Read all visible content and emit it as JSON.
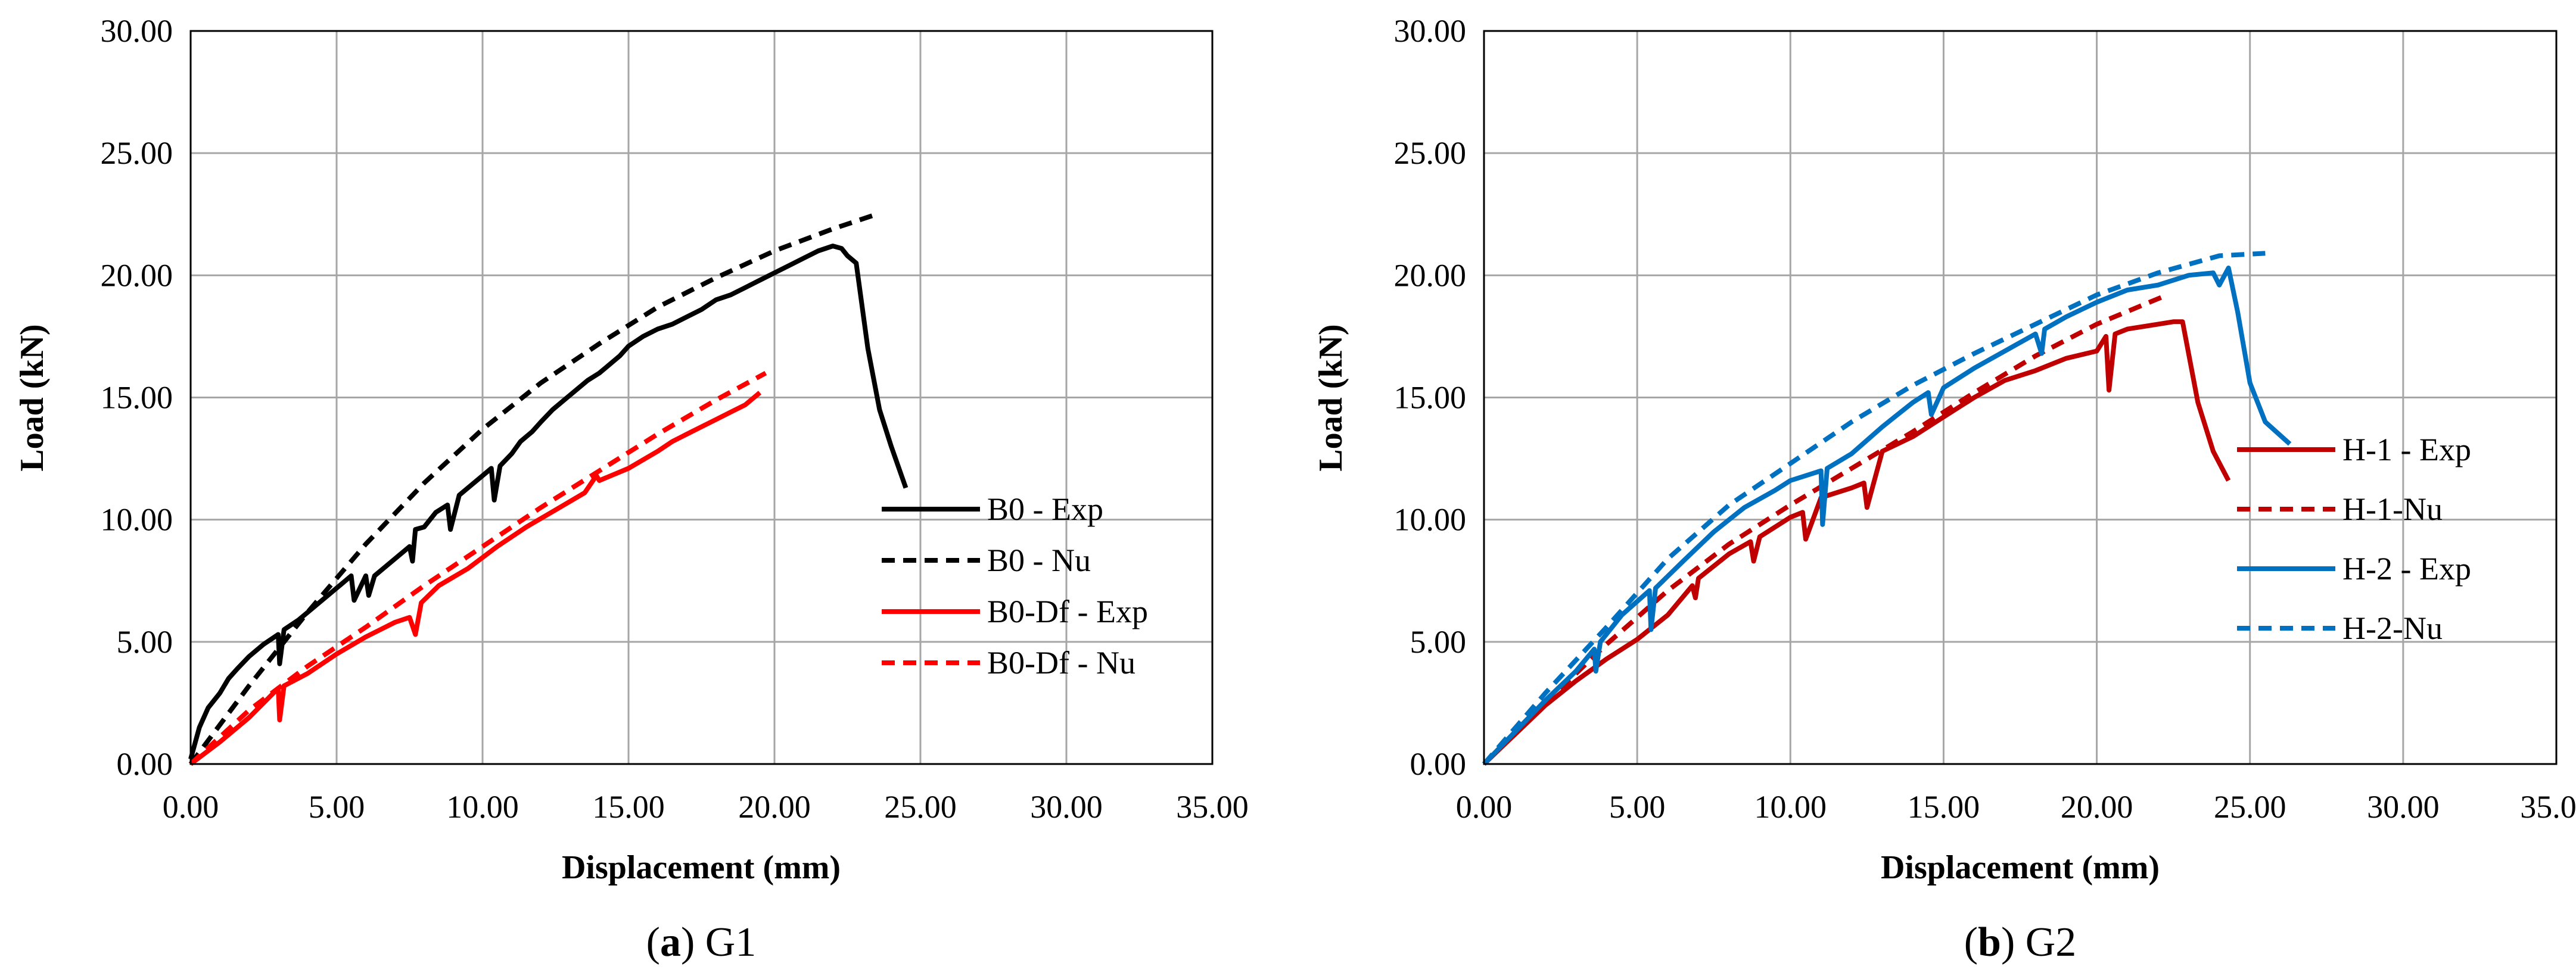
{
  "chart_data": [
    {
      "type": "line",
      "caption_letter": "a",
      "caption_text": "G1",
      "title": "",
      "xlabel": "Displacement (mm)",
      "ylabel": "Load (kN)",
      "xlim": [
        0,
        35
      ],
      "ylim": [
        0,
        30
      ],
      "xticks": [
        "0.00",
        "5.00",
        "10.00",
        "15.00",
        "20.00",
        "25.00",
        "30.00",
        "35.00"
      ],
      "yticks": [
        "0.00",
        "5.00",
        "10.00",
        "15.00",
        "20.00",
        "25.00",
        "30.00"
      ],
      "grid": true,
      "legend_position": "bottom-right",
      "series": [
        {
          "name": "B0 - Exp",
          "color": "#000000",
          "dash": "solid",
          "x": [
            0,
            0.3,
            0.6,
            1,
            1.3,
            1.6,
            2,
            2.5,
            3,
            3.05,
            3.2,
            3.7,
            4.2,
            4.7,
            5.2,
            5.5,
            5.6,
            6,
            6.1,
            6.3,
            6.6,
            7,
            7.5,
            7.6,
            7.7,
            8,
            8.4,
            8.8,
            8.9,
            9.2,
            9.6,
            10,
            10.3,
            10.4,
            10.6,
            11,
            11.3,
            11.7,
            12,
            12.4,
            12.8,
            13.2,
            13.6,
            14,
            14.3,
            14.7,
            15,
            15.5,
            16,
            16.5,
            17,
            17.5,
            18,
            18.5,
            19,
            19.5,
            20,
            20.5,
            21,
            21.5,
            22,
            22.3,
            22.5,
            22.8,
            23.2,
            23.6,
            24,
            24.5
          ],
          "y": [
            0.2,
            1.5,
            2.3,
            2.9,
            3.5,
            3.9,
            4.4,
            4.9,
            5.3,
            4.1,
            5.5,
            5.9,
            6.4,
            6.9,
            7.4,
            7.7,
            6.7,
            7.7,
            6.9,
            7.7,
            8,
            8.4,
            8.9,
            8.3,
            9.6,
            9.7,
            10.3,
            10.6,
            9.6,
            11,
            11.4,
            11.8,
            12.1,
            10.8,
            12.2,
            12.7,
            13.2,
            13.6,
            14,
            14.5,
            14.9,
            15.3,
            15.7,
            16,
            16.3,
            16.7,
            17.1,
            17.5,
            17.8,
            18,
            18.3,
            18.6,
            19,
            19.2,
            19.5,
            19.8,
            20.1,
            20.4,
            20.7,
            21,
            21.2,
            21.1,
            20.8,
            20.5,
            17,
            14.5,
            13,
            11.3
          ]
        },
        {
          "name": "B0 - Nu",
          "color": "#000000",
          "dash": "dashed",
          "x": [
            0,
            2,
            4,
            6,
            8,
            10,
            12,
            14,
            16,
            18,
            20,
            22,
            23.5
          ],
          "y": [
            0,
            3.2,
            6.2,
            9,
            11.5,
            13.7,
            15.6,
            17.2,
            18.7,
            19.9,
            21,
            21.9,
            22.5
          ]
        },
        {
          "name": "B0-Df - Exp",
          "color": "#ff0000",
          "dash": "solid",
          "x": [
            0,
            1,
            2,
            2.5,
            3,
            3.05,
            3.2,
            4,
            5,
            6,
            7,
            7.5,
            7.7,
            7.9,
            8.5,
            9.5,
            10.5,
            11.5,
            12.5,
            13.5,
            13.9,
            14,
            15,
            16,
            16.5,
            17,
            17.5,
            18,
            18.5,
            19,
            19.5
          ],
          "y": [
            0,
            0.9,
            1.9,
            2.5,
            3.1,
            1.8,
            3.2,
            3.7,
            4.5,
            5.2,
            5.8,
            6,
            5.3,
            6.6,
            7.3,
            8,
            8.9,
            9.7,
            10.4,
            11.1,
            11.8,
            11.6,
            12.1,
            12.8,
            13.2,
            13.5,
            13.8,
            14.1,
            14.4,
            14.7,
            15.2
          ]
        },
        {
          "name": "B0-Df - Nu",
          "color": "#ff0000",
          "dash": "dashed",
          "x": [
            0,
            2,
            4,
            6,
            8,
            10,
            12,
            14,
            16,
            18,
            19.7
          ],
          "y": [
            0,
            2.2,
            4,
            5.6,
            7.3,
            8.9,
            10.5,
            12,
            13.5,
            14.9,
            16
          ]
        }
      ]
    },
    {
      "type": "line",
      "caption_letter": "b",
      "caption_text": "G2",
      "title": "",
      "xlabel": "Displacement (mm)",
      "ylabel": "Load (kN)",
      "xlim": [
        0,
        35
      ],
      "ylim": [
        0,
        30
      ],
      "xticks": [
        "0.00",
        "5.00",
        "10.00",
        "15.00",
        "20.00",
        "25.00",
        "30.00",
        "35.00"
      ],
      "yticks": [
        "0.00",
        "5.00",
        "10.00",
        "15.00",
        "20.00",
        "25.00",
        "30.00"
      ],
      "grid": true,
      "legend_position": "bottom-right",
      "series": [
        {
          "name": "H-1 - Exp",
          "color": "#c00000",
          "dash": "solid",
          "x": [
            0,
            1,
            2,
            3,
            4,
            5,
            6,
            6.8,
            6.9,
            7,
            8,
            8.7,
            8.8,
            9,
            10,
            10.4,
            10.5,
            11,
            12,
            12.4,
            12.5,
            13,
            14,
            15,
            16,
            17,
            18,
            19,
            20,
            20.3,
            20.4,
            20.6,
            21,
            22,
            22.5,
            22.8,
            23.3,
            23.8,
            24.3
          ],
          "y": [
            0,
            1.2,
            2.4,
            3.4,
            4.3,
            5.1,
            6.1,
            7.3,
            6.8,
            7.6,
            8.6,
            9.1,
            8.3,
            9.3,
            10.1,
            10.3,
            9.2,
            10.9,
            11.3,
            11.5,
            10.5,
            12.8,
            13.4,
            14.2,
            15,
            15.7,
            16.1,
            16.6,
            16.9,
            17.5,
            15.3,
            17.6,
            17.8,
            18,
            18.1,
            18.1,
            14.8,
            12.8,
            11.6
          ]
        },
        {
          "name": "H-1-Nu",
          "color": "#c00000",
          "dash": "dashed",
          "x": [
            0,
            2,
            4,
            6,
            8,
            10,
            12,
            14,
            16,
            18,
            20,
            22.3
          ],
          "y": [
            0,
            2.5,
            4.9,
            7.1,
            9,
            10.6,
            12.1,
            13.6,
            15.2,
            16.7,
            18,
            19.2
          ]
        },
        {
          "name": "H-2 - Exp",
          "color": "#0070c0",
          "dash": "solid",
          "x": [
            0,
            1,
            2,
            3,
            3.6,
            3.65,
            3.8,
            4.5,
            5.4,
            5.45,
            5.6,
            6.5,
            7.5,
            8.5,
            9.5,
            10,
            11,
            11.05,
            11.2,
            12,
            13,
            14,
            14.5,
            14.6,
            15,
            16,
            17,
            18,
            18.2,
            18.3,
            19,
            20,
            21,
            22,
            23,
            23.8,
            24,
            24.3,
            24.6,
            25,
            25.5,
            26.3
          ],
          "y": [
            0,
            1.3,
            2.6,
            3.8,
            4.7,
            3.8,
            5,
            6.1,
            7.1,
            5.5,
            7.2,
            8.3,
            9.5,
            10.5,
            11.2,
            11.6,
            12,
            9.8,
            12.1,
            12.7,
            13.8,
            14.8,
            15.2,
            14.3,
            15.4,
            16.2,
            16.9,
            17.6,
            16.8,
            17.8,
            18.3,
            18.9,
            19.4,
            19.6,
            20,
            20.1,
            19.6,
            20.3,
            18.5,
            15.6,
            14,
            13.1
          ]
        },
        {
          "name": "H-2-Nu",
          "color": "#0070c0",
          "dash": "dashed",
          "x": [
            0,
            2,
            4,
            6,
            8,
            10,
            12,
            14,
            16,
            18,
            20,
            22,
            24,
            25.5
          ],
          "y": [
            0,
            2.9,
            5.6,
            8.4,
            10.6,
            12.3,
            14,
            15.5,
            16.8,
            18,
            19.2,
            20.1,
            20.8,
            20.9
          ]
        }
      ]
    }
  ]
}
